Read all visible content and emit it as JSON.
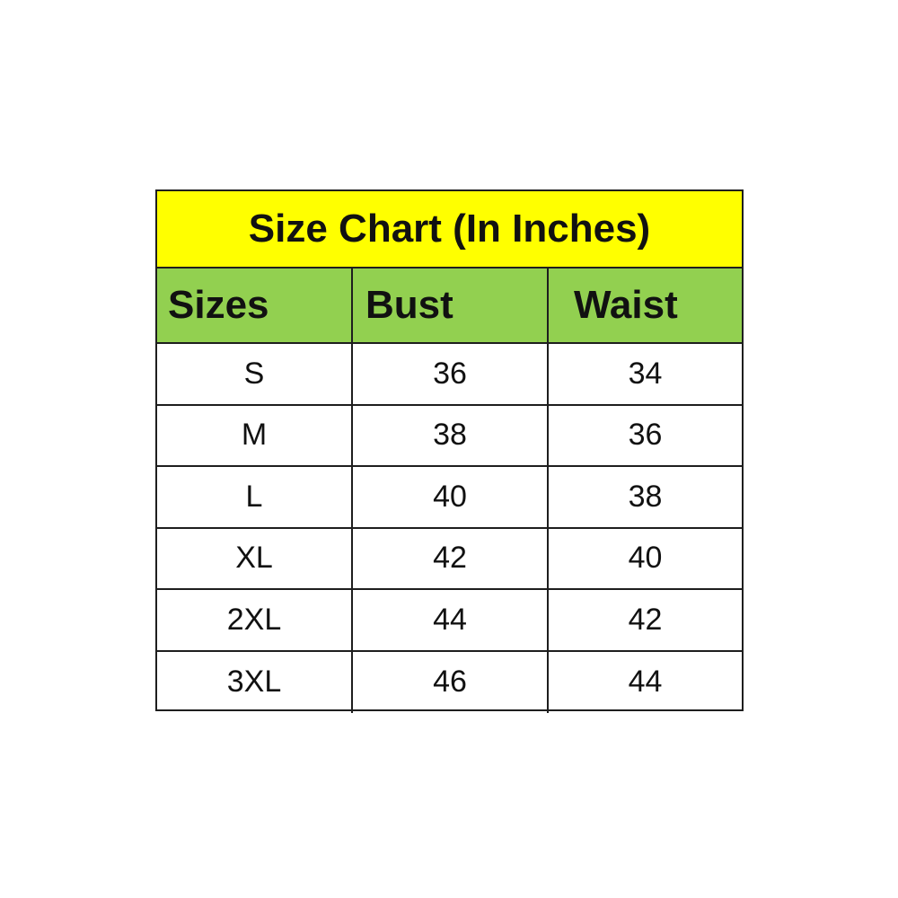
{
  "title": "Size Chart (In Inches)",
  "colors": {
    "title_bg": "#ffff00",
    "header_bg": "#92d050",
    "border": "#1e1e1e"
  },
  "headers": [
    "Sizes",
    "Bust",
    "Waist"
  ],
  "rows": [
    [
      "S",
      "36",
      "34"
    ],
    [
      "M",
      "38",
      "36"
    ],
    [
      "L",
      "40",
      "38"
    ],
    [
      "XL",
      "42",
      "40"
    ],
    [
      "2XL",
      "44",
      "42"
    ],
    [
      "3XL",
      "46",
      "44"
    ]
  ]
}
